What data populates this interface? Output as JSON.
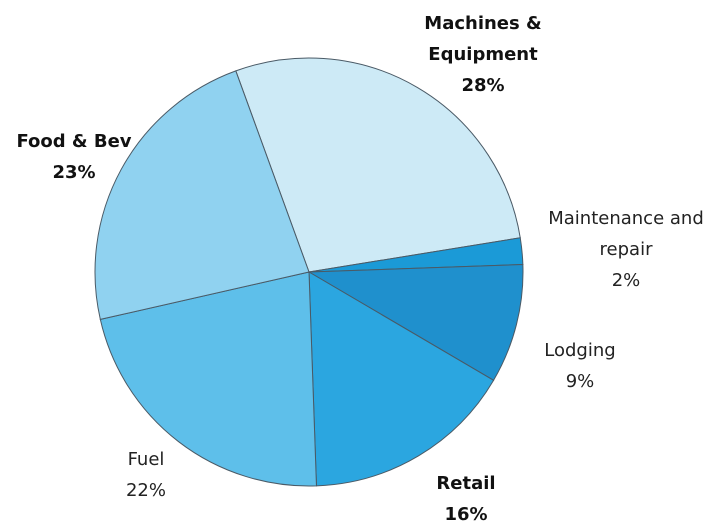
{
  "chart_data": {
    "type": "pie",
    "categories": [
      "Machines & Equipment",
      "Maintenance and repair",
      "Lodging",
      "Retail",
      "Fuel",
      "Food & Bev"
    ],
    "values": [
      28,
      2,
      9,
      16,
      22,
      23
    ],
    "value_labels": [
      "28%",
      "2%",
      "9%",
      "16%",
      "22%",
      "23%"
    ],
    "colors": [
      "#cdeaf6",
      "#1b9ad7",
      "#1f90cd",
      "#2ba6e0",
      "#5ebfea",
      "#90d2f0"
    ]
  }
}
